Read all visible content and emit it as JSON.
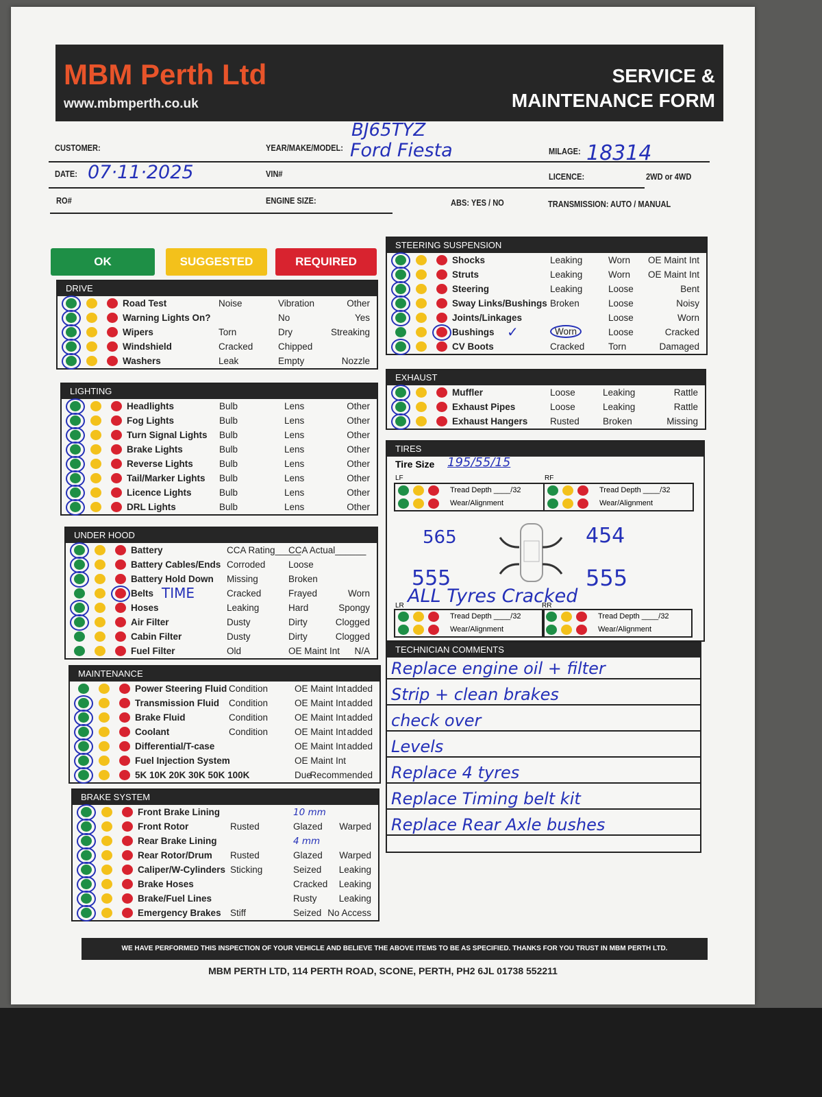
{
  "header": {
    "brand": "MBM Perth Ltd",
    "website": "www.mbmperth.co.uk",
    "form_title_1": "SERVICE &",
    "form_title_2": "MAINTENANCE FORM"
  },
  "fields": {
    "customer_label": "CUSTOMER:",
    "year_make_model_label": "YEAR/MAKE/MODEL:",
    "registration_value": "BJ65TYZ",
    "year_make_model_value": "Ford Fiesta",
    "milage_label": "MILAGE:",
    "milage_value": "18314",
    "date_label": "DATE:",
    "date_value": "07·11·2025",
    "vin_label": "VIN#",
    "licence_label": "LICENCE:",
    "drive_label": "2WD or 4WD",
    "ro_label": "RO#",
    "engine_size_label": "ENGINE SIZE:",
    "abs_label": "ABS:  YES / NO",
    "transmission_label": "TRANSMISSION:  AUTO  /  MANUAL"
  },
  "legend": {
    "ok": "OK",
    "suggested": "SUGGESTED",
    "required": "REQUIRED",
    "colors": {
      "ok": "#1e8f46",
      "suggested": "#f3c11b",
      "required": "#d8232f",
      "ink": "#2430b8"
    }
  },
  "sections": [
    {
      "id": "drive",
      "title": "DRIVE",
      "rows": [
        {
          "label": "Road Test",
          "opts": [
            "Noise",
            "Vibration",
            "Other"
          ],
          "mark": "ok"
        },
        {
          "label": "Warning Lights On?",
          "opts": [
            "",
            "No",
            "Yes"
          ],
          "mark": "ok"
        },
        {
          "label": "Wipers",
          "opts": [
            "Torn",
            "Dry",
            "Streaking"
          ],
          "mark": "ok"
        },
        {
          "label": "Windshield",
          "opts": [
            "Cracked",
            "Chipped",
            ""
          ],
          "mark": "ok"
        },
        {
          "label": "Washers",
          "opts": [
            "Leak",
            "Empty",
            "Nozzle"
          ],
          "mark": "ok"
        }
      ]
    },
    {
      "id": "lighting",
      "title": "LIGHTING",
      "rows": [
        {
          "label": "Headlights",
          "opts": [
            "Bulb",
            "Lens",
            "Other"
          ],
          "mark": "ok"
        },
        {
          "label": "Fog Lights",
          "opts": [
            "Bulb",
            "Lens",
            "Other"
          ],
          "mark": "ok"
        },
        {
          "label": "Turn Signal Lights",
          "opts": [
            "Bulb",
            "Lens",
            "Other"
          ],
          "mark": "ok"
        },
        {
          "label": "Brake Lights",
          "opts": [
            "Bulb",
            "Lens",
            "Other"
          ],
          "mark": "ok"
        },
        {
          "label": "Reverse Lights",
          "opts": [
            "Bulb",
            "Lens",
            "Other"
          ],
          "mark": "ok"
        },
        {
          "label": "Tail/Marker Lights",
          "opts": [
            "Bulb",
            "Lens",
            "Other"
          ],
          "mark": "ok"
        },
        {
          "label": "Licence Lights",
          "opts": [
            "Bulb",
            "Lens",
            "Other"
          ],
          "mark": "ok"
        },
        {
          "label": "DRL Lights",
          "opts": [
            "Bulb",
            "Lens",
            "Other"
          ],
          "mark": "ok"
        }
      ]
    },
    {
      "id": "under-hood",
      "title": "UNDER HOOD",
      "rows": [
        {
          "label": "Battery",
          "opts": [
            "CCA Rating_____",
            "CCA Actual______",
            ""
          ],
          "mark": "ok"
        },
        {
          "label": "Battery Cables/Ends",
          "opts": [
            "Corroded",
            "Loose",
            ""
          ],
          "mark": "ok"
        },
        {
          "label": "Battery Hold Down",
          "opts": [
            "Missing",
            "Broken",
            ""
          ],
          "mark": "ok"
        },
        {
          "label": "Belts",
          "opts": [
            "Cracked",
            "Frayed",
            "Worn"
          ],
          "mark": "required",
          "note": "TIME"
        },
        {
          "label": "Hoses",
          "opts": [
            "Leaking",
            "Hard",
            "Spongy"
          ],
          "mark": "ok"
        },
        {
          "label": "Air Filter",
          "opts": [
            "Dusty",
            "Dirty",
            "Clogged"
          ],
          "mark": "ok"
        },
        {
          "label": "Cabin Filter",
          "opts": [
            "Dusty",
            "Dirty",
            "Clogged"
          ],
          "mark": null
        },
        {
          "label": "Fuel Filter",
          "opts": [
            "Old",
            "OE Maint Int",
            "N/A"
          ],
          "mark": null
        }
      ]
    },
    {
      "id": "maintenance",
      "title": "MAINTENANCE",
      "rows": [
        {
          "label": "Power Steering Fluid",
          "opts": [
            "Condition",
            "OE Maint Int",
            "added"
          ],
          "mark": null
        },
        {
          "label": "Transmission Fluid",
          "opts": [
            "Condition",
            "OE Maint Int",
            "added"
          ],
          "mark": "ok"
        },
        {
          "label": "Brake Fluid",
          "opts": [
            "Condition",
            "OE Maint Int",
            "added"
          ],
          "mark": "ok"
        },
        {
          "label": "Coolant",
          "opts": [
            "Condition",
            "OE Maint Int",
            "added"
          ],
          "mark": "ok"
        },
        {
          "label": "Differential/T-case",
          "opts": [
            "",
            "OE Maint Int",
            "added"
          ],
          "mark": "ok"
        },
        {
          "label": "Fuel Injection System",
          "opts": [
            "",
            "OE Maint Int",
            ""
          ],
          "mark": "ok"
        },
        {
          "label": "5K 10K 20K 30K 50K 100K",
          "opts": [
            "",
            "Due",
            "Recommended"
          ],
          "mark": "ok"
        }
      ]
    },
    {
      "id": "brake-system",
      "title": "BRAKE SYSTEM",
      "rows": [
        {
          "label": "Front Brake Lining",
          "opts": [
            "",
            "10 mm",
            ""
          ],
          "mark": "ok"
        },
        {
          "label": "Front Rotor",
          "opts": [
            "Rusted",
            "Glazed",
            "Warped"
          ],
          "mark": "ok"
        },
        {
          "label": "Rear Brake Lining",
          "opts": [
            "",
            "4 mm",
            ""
          ],
          "mark": "ok"
        },
        {
          "label": "Rear Rotor/Drum",
          "opts": [
            "Rusted",
            "Glazed",
            "Warped"
          ],
          "mark": "ok"
        },
        {
          "label": "Caliper/W-Cylinders",
          "opts": [
            "Sticking",
            "Seized",
            "Leaking"
          ],
          "mark": "ok"
        },
        {
          "label": "Brake Hoses",
          "opts": [
            "",
            "Cracked",
            "Leaking"
          ],
          "mark": "ok"
        },
        {
          "label": "Brake/Fuel Lines",
          "opts": [
            "",
            "Rusty",
            "Leaking"
          ],
          "mark": "ok"
        },
        {
          "label": "Emergency Brakes",
          "opts": [
            "Stiff",
            "Seized",
            "No Access"
          ],
          "mark": "ok"
        }
      ]
    },
    {
      "id": "steering-suspension",
      "title": "STEERING SUSPENSION",
      "rows": [
        {
          "label": "Shocks",
          "opts": [
            "Leaking",
            "Worn",
            "OE Maint Int"
          ],
          "mark": "ok"
        },
        {
          "label": "Struts",
          "opts": [
            "Leaking",
            "Worn",
            "OE Maint Int"
          ],
          "mark": "ok"
        },
        {
          "label": "Steering",
          "opts": [
            "Leaking",
            "Loose",
            "Bent"
          ],
          "mark": "ok"
        },
        {
          "label": "Sway Links/Bushings",
          "opts": [
            "Broken",
            "Loose",
            "Noisy"
          ],
          "mark": "ok"
        },
        {
          "label": "Joints/Linkages",
          "opts": [
            "",
            "Loose",
            "Worn"
          ],
          "mark": "ok"
        },
        {
          "label": "Bushings",
          "opts": [
            "Worn",
            "Loose",
            "Cracked"
          ],
          "mark": "required",
          "note": "✓",
          "circled_opt": 0
        },
        {
          "label": "CV Boots",
          "opts": [
            "Cracked",
            "Torn",
            "Damaged"
          ],
          "mark": "ok"
        }
      ]
    },
    {
      "id": "exhaust",
      "title": "EXHAUST",
      "rows": [
        {
          "label": "Muffler",
          "opts": [
            "Loose",
            "Leaking",
            "Rattle"
          ],
          "mark": "ok"
        },
        {
          "label": "Exhaust Pipes",
          "opts": [
            "Loose",
            "Leaking",
            "Rattle"
          ],
          "mark": "ok"
        },
        {
          "label": "Exhaust Hangers",
          "opts": [
            "Rusted",
            "Broken",
            "Missing"
          ],
          "mark": "ok"
        }
      ]
    }
  ],
  "tires": {
    "title": "TIRES",
    "size_label": "Tire Size",
    "size_value": "195/55/15",
    "tread_label": "Tread Depth ____/32",
    "wear_label": "Wear/Alignment",
    "positions": {
      "lf": "LF",
      "rf": "RF",
      "lr": "LR",
      "rr": "RR"
    },
    "readings": {
      "lf": "565",
      "rf": "454",
      "lr": "555",
      "rr": "555"
    },
    "note": "ALL Tyres Cracked"
  },
  "comments": {
    "title": "TECHNICIAN COMMENTS",
    "lines": [
      "Replace engine oil + filter",
      "Strip + clean brakes",
      "check over",
      "Levels",
      "Replace 4 tyres",
      "Replace Timing belt kit",
      "Replace Rear Axle bushes"
    ]
  },
  "footer": {
    "disclaimer": "WE HAVE PERFORMED THIS INSPECTION OF YOUR VEHICLE AND BELIEVE THE ABOVE ITEMS TO BE AS SPECIFIED. THANKS FOR YOU TRUST IN MBM PERTH LTD.",
    "address": "MBM PERTH LTD, 114 PERTH ROAD, SCONE, PERTH, PH2 6JL     01738 552211"
  }
}
